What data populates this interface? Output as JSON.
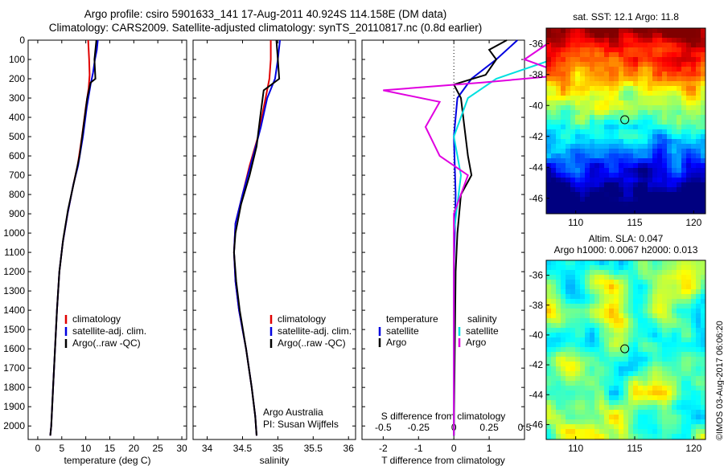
{
  "figure": {
    "title_line1": "Argo profile: csiro 5901633_141 17-Aug-2011 40.924S 114.158E (DM data)",
    "title_line2": "Climatology: CARS2009. Satellite-adjusted climatology: synTS_20110817.nc (0.8d earlier)",
    "side_text": "©IMOS 03-Aug-2017 06:06:20"
  },
  "colors": {
    "climatology": "#e00000",
    "satellite": "#0000e0",
    "argo": "#000000",
    "satellite_salinity": "#00e0e0",
    "argo_salinity": "#e000e0"
  },
  "chart_data": [
    {
      "type": "line",
      "panel": "temperature",
      "xlabel": "temperature (deg C)",
      "ylabel": "",
      "xlim": [
        -2,
        31
      ],
      "ylim": [
        2070,
        0
      ],
      "xticks": [
        0,
        5,
        10,
        15,
        20,
        25,
        30
      ],
      "yticks": [
        0,
        100,
        200,
        300,
        400,
        500,
        600,
        700,
        800,
        900,
        1000,
        1100,
        1200,
        1300,
        1400,
        1500,
        1600,
        1700,
        1800,
        1900,
        2000
      ],
      "legend": [
        "climatology",
        "satellite-adj. clim.",
        "Argo(..raw -QC)"
      ],
      "legend_position": "lower-middle",
      "series": [
        {
          "name": "climatology",
          "points": [
            [
              10.5,
              0
            ],
            [
              10.7,
              100
            ],
            [
              10.8,
              180
            ],
            [
              10.6,
              250
            ],
            [
              10.0,
              350
            ],
            [
              9.2,
              500
            ],
            [
              8.3,
              650
            ],
            [
              7.4,
              750
            ],
            [
              6.2,
              900
            ],
            [
              5.2,
              1050
            ],
            [
              4.5,
              1200
            ],
            [
              4.0,
              1400
            ],
            [
              3.6,
              1600
            ],
            [
              3.2,
              1800
            ],
            [
              2.8,
              2000
            ],
            [
              2.6,
              2050
            ]
          ]
        },
        {
          "name": "satellite-adj. clim.",
          "points": [
            [
              12.5,
              0
            ],
            [
              12.3,
              50
            ],
            [
              11.9,
              100
            ],
            [
              11.5,
              170
            ],
            [
              11.0,
              230
            ],
            [
              10.2,
              350
            ],
            [
              9.4,
              500
            ],
            [
              8.4,
              650
            ],
            [
              7.4,
              750
            ],
            [
              6.2,
              900
            ],
            [
              5.2,
              1050
            ],
            [
              4.5,
              1200
            ],
            [
              4.0,
              1400
            ],
            [
              3.6,
              1600
            ],
            [
              3.2,
              1800
            ],
            [
              2.8,
              2000
            ],
            [
              2.6,
              2050
            ]
          ]
        },
        {
          "name": "Argo(..raw -QC)",
          "points": [
            [
              12.2,
              0
            ],
            [
              12.0,
              50
            ],
            [
              11.8,
              100
            ],
            [
              11.9,
              150
            ],
            [
              12.0,
              200
            ],
            [
              11.0,
              220
            ],
            [
              10.3,
              300
            ],
            [
              9.5,
              450
            ],
            [
              8.7,
              600
            ],
            [
              7.6,
              730
            ],
            [
              6.3,
              880
            ],
            [
              5.3,
              1030
            ],
            [
              4.5,
              1200
            ],
            [
              4.0,
              1400
            ],
            [
              3.6,
              1600
            ],
            [
              3.2,
              1800
            ],
            [
              2.8,
              2000
            ],
            [
              2.6,
              2050
            ]
          ]
        }
      ]
    },
    {
      "type": "line",
      "panel": "salinity",
      "xlabel": "salinity",
      "ylabel": "",
      "xlim": [
        33.8,
        36.1
      ],
      "ylim": [
        2070,
        0
      ],
      "xticks": [
        34,
        34.5,
        35,
        35.5,
        36
      ],
      "legend": [
        "climatology",
        "satellite-adj. clim.",
        "Argo(..raw -QC)"
      ],
      "legend_position": "lower-right",
      "annotation_lines": [
        "Argo Australia",
        "PI: Susan Wijffels"
      ],
      "series": [
        {
          "name": "climatology",
          "points": [
            [
              34.9,
              0
            ],
            [
              34.9,
              100
            ],
            [
              34.88,
              200
            ],
            [
              34.8,
              350
            ],
            [
              34.72,
              500
            ],
            [
              34.6,
              650
            ],
            [
              34.5,
              800
            ],
            [
              34.4,
              950
            ],
            [
              34.38,
              1100
            ],
            [
              34.4,
              1250
            ],
            [
              34.45,
              1400
            ],
            [
              34.55,
              1600
            ],
            [
              34.63,
              1800
            ],
            [
              34.68,
              1950
            ],
            [
              34.7,
              2050
            ]
          ]
        },
        {
          "name": "satellite-adj. clim.",
          "points": [
            [
              35.03,
              0
            ],
            [
              35.0,
              100
            ],
            [
              34.96,
              200
            ],
            [
              34.85,
              300
            ],
            [
              34.76,
              450
            ],
            [
              34.65,
              600
            ],
            [
              34.5,
              800
            ],
            [
              34.4,
              950
            ],
            [
              34.38,
              1100
            ],
            [
              34.4,
              1250
            ],
            [
              34.45,
              1400
            ],
            [
              34.55,
              1600
            ],
            [
              34.63,
              1800
            ],
            [
              34.68,
              1950
            ],
            [
              34.7,
              2050
            ]
          ]
        },
        {
          "name": "Argo(..raw -QC)",
          "points": [
            [
              34.98,
              0
            ],
            [
              35.0,
              100
            ],
            [
              35.02,
              200
            ],
            [
              34.8,
              260
            ],
            [
              34.75,
              400
            ],
            [
              34.7,
              550
            ],
            [
              34.6,
              700
            ],
            [
              34.48,
              850
            ],
            [
              34.4,
              1000
            ],
            [
              34.38,
              1100
            ],
            [
              34.41,
              1250
            ],
            [
              34.46,
              1400
            ],
            [
              34.55,
              1600
            ],
            [
              34.63,
              1800
            ],
            [
              34.68,
              1950
            ],
            [
              34.7,
              2050
            ]
          ]
        }
      ]
    },
    {
      "type": "line",
      "panel": "difference",
      "xlabel": "T difference from climatology",
      "xlabel_top": "S difference from climatology",
      "xlim": [
        -2.6,
        2.0
      ],
      "ylim": [
        2070,
        0
      ],
      "xticks": [
        -2,
        -1,
        0,
        1
      ],
      "xticks_salinity": [
        -0.5,
        -0.25,
        0,
        0.25,
        0.5
      ],
      "legend_groups": [
        {
          "heading": "temperature",
          "items": [
            "satellite",
            "Argo"
          ]
        },
        {
          "heading": "salinity",
          "items": [
            "satellite",
            "Argo"
          ]
        }
      ],
      "series": [
        {
          "name": "temperature satellite",
          "points": [
            [
              1.8,
              0
            ],
            [
              1.2,
              100
            ],
            [
              0.5,
              200
            ],
            [
              0.1,
              300
            ],
            [
              0.0,
              500
            ],
            [
              0.05,
              800
            ],
            [
              0.0,
              1200
            ],
            [
              0.0,
              2050
            ]
          ]
        },
        {
          "name": "temperature Argo",
          "points": [
            [
              1.5,
              0
            ],
            [
              1.0,
              50
            ],
            [
              1.2,
              100
            ],
            [
              0.9,
              180
            ],
            [
              0.0,
              230
            ],
            [
              0.2,
              300
            ],
            [
              0.3,
              450
            ],
            [
              0.4,
              600
            ],
            [
              0.5,
              700
            ],
            [
              0.2,
              800
            ],
            [
              0.1,
              1000
            ],
            [
              0.05,
              1200
            ],
            [
              0.0,
              2050
            ]
          ]
        },
        {
          "name": "salinity satellite",
          "points": [
            [
              0.9,
              0
            ],
            [
              0.7,
              100
            ],
            [
              0.3,
              200
            ],
            [
              0.1,
              300
            ],
            [
              0.0,
              500
            ],
            [
              0.05,
              700
            ],
            [
              0.0,
              1000
            ],
            [
              0.0,
              2050
            ]
          ]
        },
        {
          "name": "salinity Argo",
          "points": [
            [
              0.7,
              0
            ],
            [
              0.5,
              100
            ],
            [
              0.8,
              180
            ],
            [
              0.2,
              220
            ],
            [
              -0.5,
              260
            ],
            [
              -0.1,
              320
            ],
            [
              -0.2,
              450
            ],
            [
              -0.1,
              600
            ],
            [
              0.1,
              700
            ],
            [
              0.0,
              900
            ],
            [
              0.0,
              2050
            ]
          ]
        }
      ]
    },
    {
      "type": "heatmap",
      "panel": "sst_map",
      "title": "sat. SST: 12.1  Argo: 11.8",
      "xlim": [
        107.5,
        121
      ],
      "ylim": [
        -47,
        -35
      ],
      "xticks": [
        110,
        115,
        120
      ],
      "yticks": [
        -36,
        -38,
        -40,
        -42,
        -44,
        -46
      ],
      "marker": {
        "lon": 114.158,
        "lat": -40.924
      }
    },
    {
      "type": "heatmap",
      "panel": "sla_map",
      "title_line1": "Altim. SLA: 0.047",
      "title_line2": "Argo h1000: 0.0067  h2000: 0.013",
      "xlim": [
        107.5,
        121
      ],
      "ylim": [
        -47,
        -35
      ],
      "xticks": [
        110,
        115,
        120
      ],
      "yticks": [
        -36,
        -38,
        -40,
        -42,
        -44,
        -46
      ],
      "marker": {
        "lon": 114.158,
        "lat": -40.924
      }
    }
  ]
}
